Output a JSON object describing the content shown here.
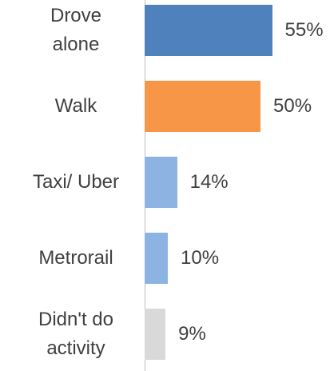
{
  "chart_data": {
    "type": "barh",
    "categories": [
      "Drove alone",
      "Walk",
      "Taxi/ Uber",
      "Metrorail",
      "Didn't do activity"
    ],
    "values": [
      55,
      50,
      14,
      10,
      9
    ],
    "value_labels": [
      "55%",
      "50%",
      "14%",
      "10%",
      "9%"
    ],
    "colors": [
      "#4f81bd",
      "#f79646",
      "#8db3e2",
      "#8db3e2",
      "#d9d9d9"
    ],
    "xlim": [
      0,
      80
    ]
  }
}
